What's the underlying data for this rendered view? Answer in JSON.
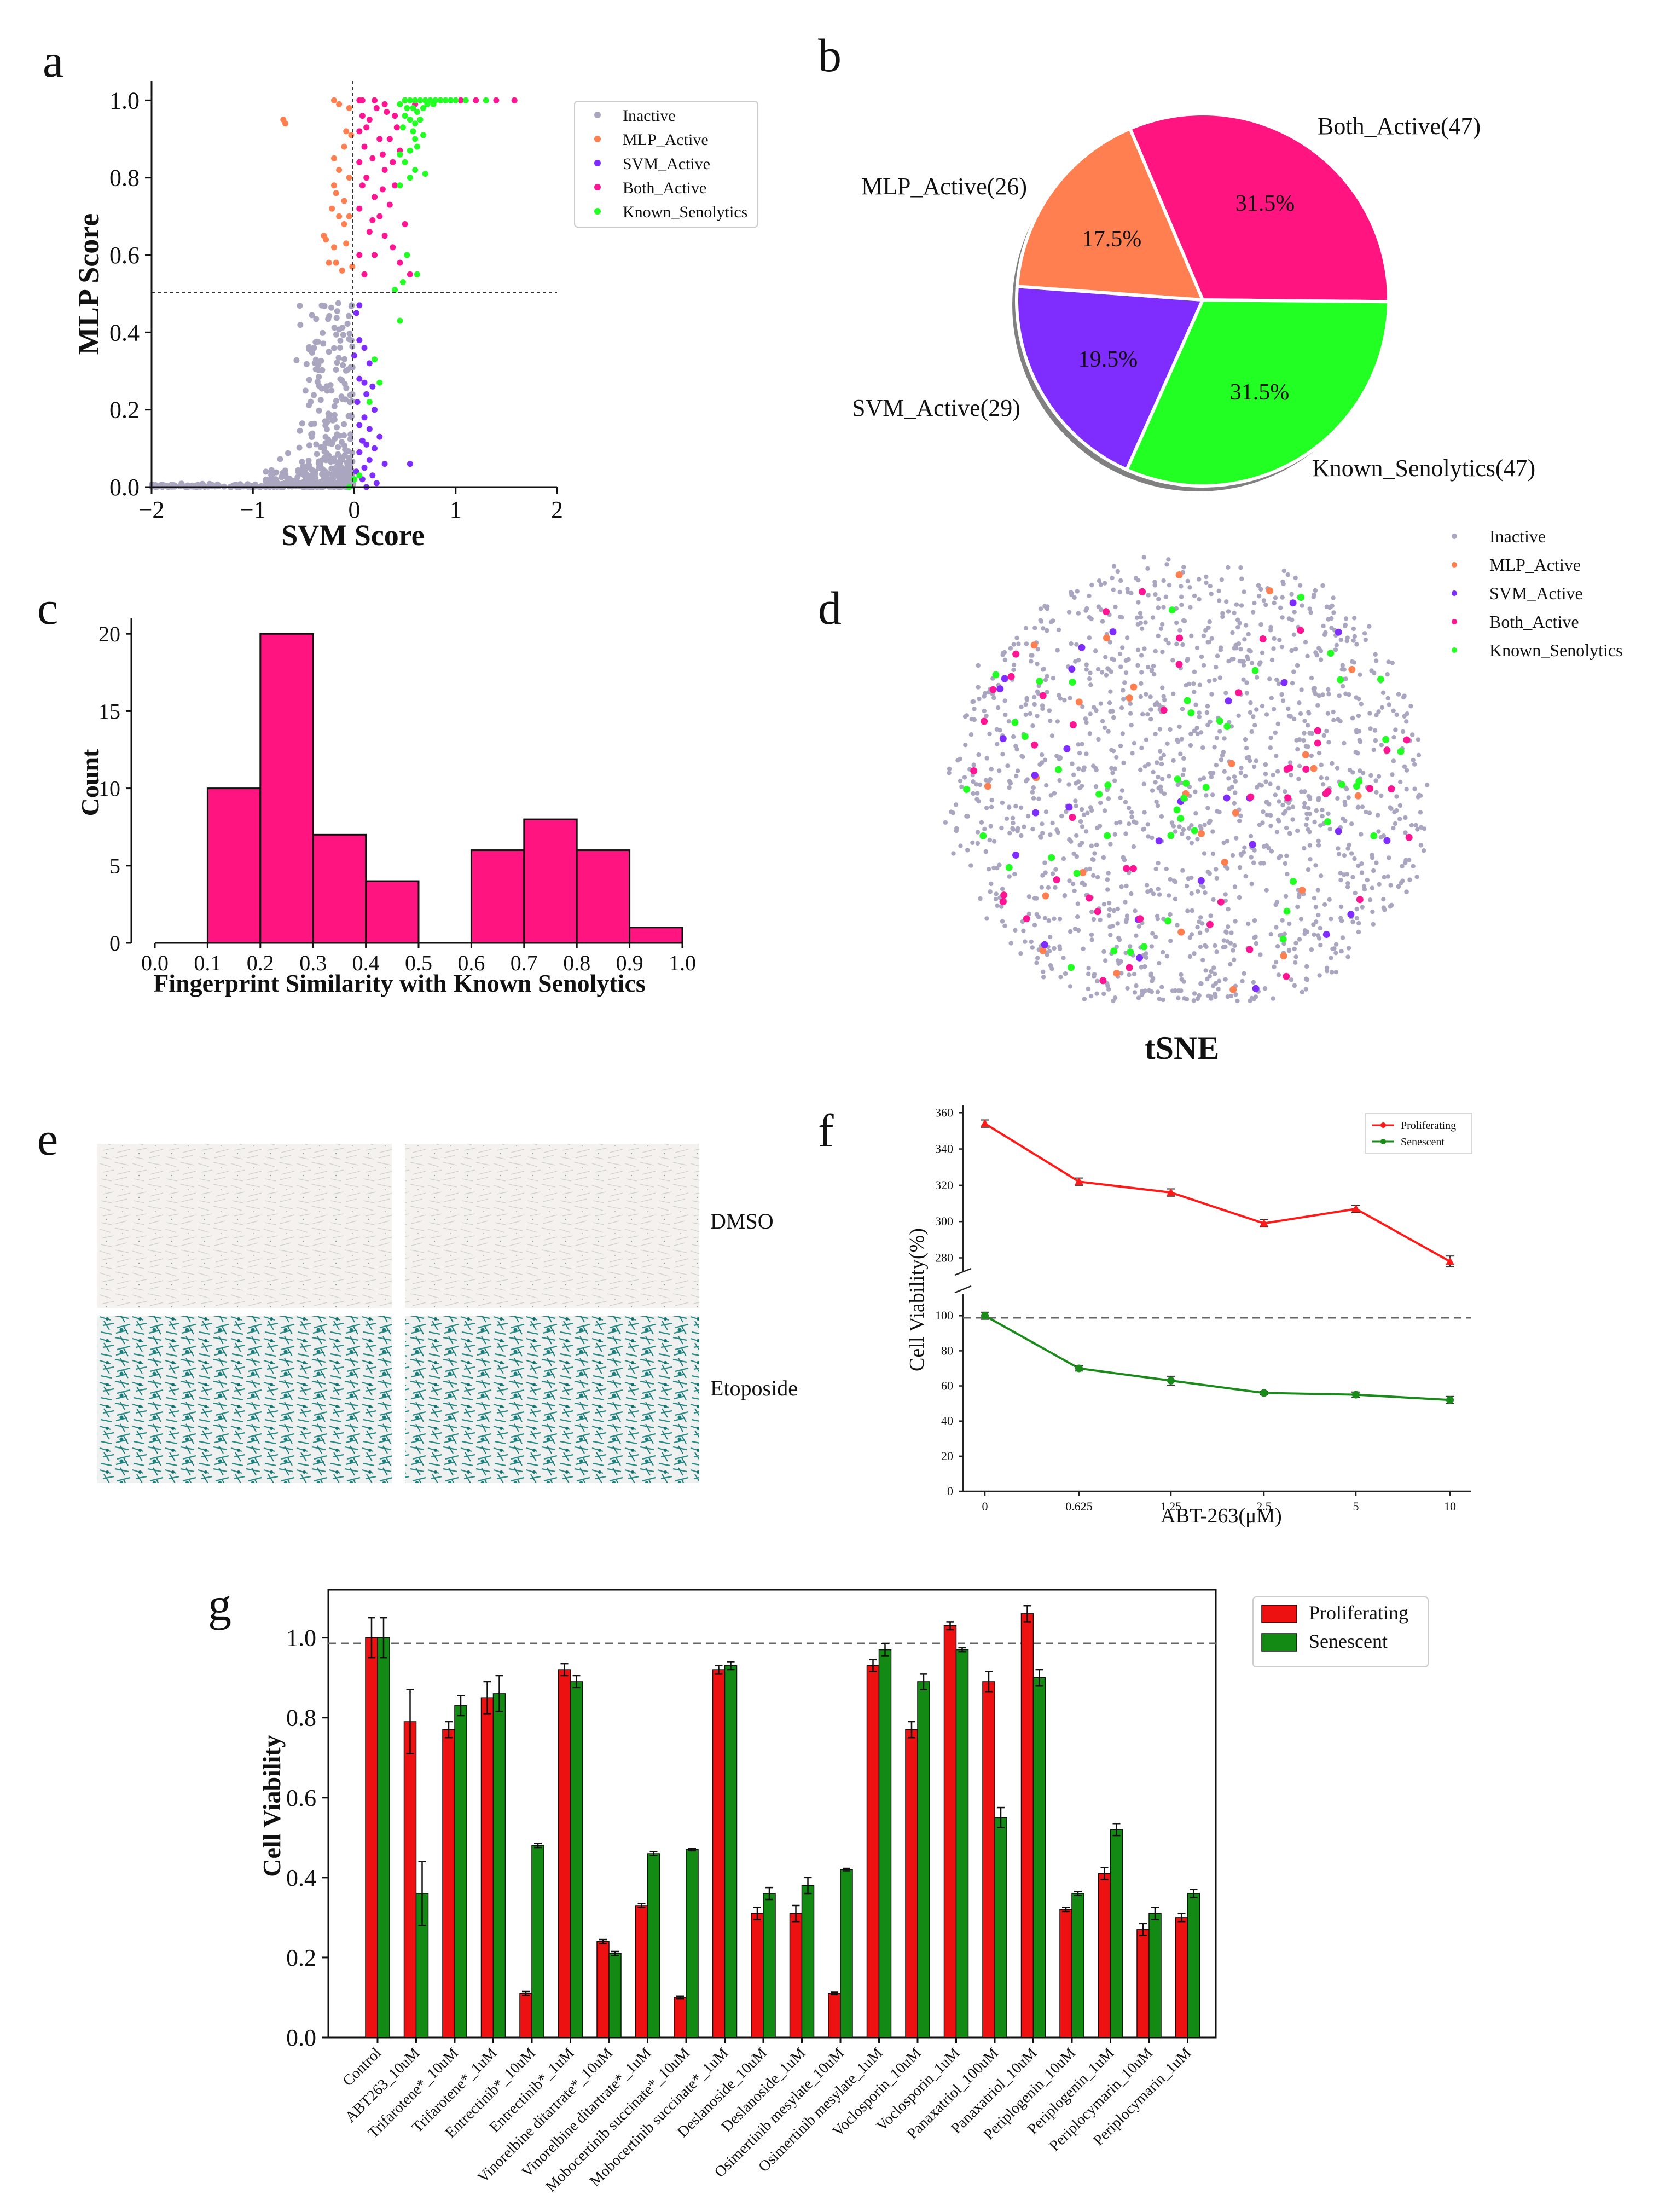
{
  "colors": {
    "inactive": "#aaa6c0",
    "mlp": "#ff7f50",
    "svm": "#7f2dff",
    "both": "#ff1493",
    "known": "#22ff22",
    "hist": "#ff1480",
    "prolif": "#ff1a1a",
    "senes": "#1a8a1a",
    "barProlif": "#ee1111",
    "barSenes": "#138a13"
  },
  "panels": {
    "a": "a",
    "b": "b",
    "c": "c",
    "d": "d",
    "e": "e",
    "f": "f",
    "g": "g"
  },
  "chart_data": [
    {
      "id": "a",
      "type": "scatter",
      "xlabel": "SVM Score",
      "ylabel": "MLP Score",
      "xlim": [
        -2,
        2
      ],
      "ylim": [
        0,
        1.05
      ],
      "xticks": [
        "−2",
        "−1",
        "0",
        "1",
        "2"
      ],
      "yticks": [
        "0.0",
        "0.2",
        "0.4",
        "0.6",
        "0.8",
        "1.0"
      ],
      "thresholds": {
        "x": 0,
        "y": 0.5
      },
      "legend": [
        "Inactive",
        "MLP_Active",
        "SVM_Active",
        "Both_Active",
        "Known_Senolytics"
      ],
      "legend_position": "right",
      "series": {
        "MLP_Active": [
          [
            -0.7,
            0.95
          ],
          [
            -0.68,
            0.94
          ],
          [
            -0.2,
            1.0
          ],
          [
            -0.15,
            0.99
          ],
          [
            -0.05,
            0.98
          ],
          [
            -0.08,
            0.92
          ],
          [
            -0.03,
            0.91
          ],
          [
            -0.1,
            0.88
          ],
          [
            -0.2,
            0.85
          ],
          [
            -0.15,
            0.82
          ],
          [
            -0.05,
            0.8
          ],
          [
            -0.2,
            0.78
          ],
          [
            -0.18,
            0.76
          ],
          [
            -0.1,
            0.74
          ],
          [
            -0.22,
            0.72
          ],
          [
            -0.15,
            0.7
          ],
          [
            -0.1,
            0.68
          ],
          [
            -0.05,
            0.7
          ],
          [
            -0.3,
            0.65
          ],
          [
            -0.28,
            0.64
          ],
          [
            -0.2,
            0.62
          ],
          [
            -0.08,
            0.63
          ],
          [
            -0.25,
            0.58
          ],
          [
            -0.18,
            0.58
          ],
          [
            -0.12,
            0.56
          ],
          [
            -0.02,
            0.57
          ]
        ],
        "SVM_Active": [
          [
            0.05,
            0.47
          ],
          [
            0.02,
            0.45
          ],
          [
            0.05,
            0.38
          ],
          [
            0.1,
            0.36
          ],
          [
            0.0,
            0.34
          ],
          [
            0.15,
            0.32
          ],
          [
            0.05,
            0.28
          ],
          [
            0.1,
            0.27
          ],
          [
            0.18,
            0.26
          ],
          [
            0.12,
            0.24
          ],
          [
            0.03,
            0.22
          ],
          [
            0.2,
            0.2
          ],
          [
            0.1,
            0.18
          ],
          [
            0.05,
            0.16
          ],
          [
            0.15,
            0.15
          ],
          [
            0.25,
            0.13
          ],
          [
            0.08,
            0.12
          ],
          [
            0.12,
            0.11
          ],
          [
            0.2,
            0.1
          ],
          [
            0.05,
            0.09
          ],
          [
            0.15,
            0.07
          ],
          [
            0.3,
            0.06
          ],
          [
            0.55,
            0.06
          ],
          [
            0.1,
            0.05
          ],
          [
            0.02,
            0.04
          ],
          [
            0.18,
            0.03
          ],
          [
            0.08,
            0.02
          ],
          [
            0.22,
            0.01
          ],
          [
            0.12,
            0.0
          ]
        ],
        "Both_Active": [
          [
            0.05,
            1.0
          ],
          [
            0.2,
            1.0
          ],
          [
            0.3,
            0.99
          ],
          [
            0.6,
            0.99
          ],
          [
            1.2,
            1.0
          ],
          [
            1.4,
            1.0
          ],
          [
            1.58,
            1.0
          ],
          [
            0.08,
            0.96
          ],
          [
            0.15,
            0.95
          ],
          [
            0.4,
            0.96
          ],
          [
            0.05,
            0.92
          ],
          [
            0.25,
            0.9
          ],
          [
            0.35,
            0.9
          ],
          [
            0.1,
            0.88
          ],
          [
            0.45,
            0.87
          ],
          [
            0.05,
            0.84
          ],
          [
            0.3,
            0.82
          ],
          [
            0.12,
            0.8
          ],
          [
            0.4,
            0.78
          ],
          [
            0.2,
            0.75
          ],
          [
            0.35,
            0.73
          ],
          [
            0.05,
            0.72
          ],
          [
            0.25,
            0.7
          ],
          [
            0.5,
            0.68
          ],
          [
            0.15,
            0.66
          ],
          [
            0.3,
            0.65
          ],
          [
            0.2,
            0.6
          ],
          [
            0.45,
            0.58
          ],
          [
            0.55,
            0.55
          ],
          [
            0.1,
            0.55
          ],
          [
            0.08,
            1.0
          ],
          [
            0.5,
            1.0
          ],
          [
            0.7,
            1.0
          ],
          [
            0.85,
            1.0
          ],
          [
            1.05,
            1.0
          ],
          [
            0.22,
            0.98
          ],
          [
            0.32,
            0.97
          ],
          [
            0.12,
            0.93
          ],
          [
            0.42,
            0.93
          ],
          [
            0.28,
            0.86
          ],
          [
            0.18,
            0.85
          ],
          [
            0.38,
            0.84
          ],
          [
            0.08,
            0.78
          ],
          [
            0.28,
            0.77
          ],
          [
            0.18,
            0.69
          ],
          [
            0.38,
            0.62
          ],
          [
            0.05,
            0.6
          ]
        ],
        "Known_Senolytics": [
          [
            0.5,
            1.0
          ],
          [
            0.55,
            1.0
          ],
          [
            0.6,
            1.0
          ],
          [
            0.65,
            1.0
          ],
          [
            0.7,
            1.0
          ],
          [
            0.75,
            1.0
          ],
          [
            0.8,
            1.0
          ],
          [
            0.85,
            1.0
          ],
          [
            0.9,
            1.0
          ],
          [
            0.95,
            1.0
          ],
          [
            1.0,
            1.0
          ],
          [
            1.1,
            1.0
          ],
          [
            1.3,
            1.0
          ],
          [
            0.45,
            0.99
          ],
          [
            0.52,
            0.98
          ],
          [
            0.58,
            0.98
          ],
          [
            0.62,
            0.97
          ],
          [
            0.68,
            0.98
          ],
          [
            0.72,
            0.99
          ],
          [
            0.78,
            0.99
          ],
          [
            0.5,
            0.96
          ],
          [
            0.55,
            0.95
          ],
          [
            0.6,
            0.94
          ],
          [
            0.65,
            0.95
          ],
          [
            0.48,
            0.93
          ],
          [
            0.58,
            0.92
          ],
          [
            0.6,
            0.9
          ],
          [
            0.68,
            0.91
          ],
          [
            0.62,
            0.88
          ],
          [
            0.45,
            0.86
          ],
          [
            0.55,
            0.87
          ],
          [
            0.5,
            0.84
          ],
          [
            0.6,
            0.82
          ],
          [
            0.7,
            0.81
          ],
          [
            0.55,
            0.8
          ],
          [
            0.45,
            0.78
          ],
          [
            0.52,
            0.6
          ],
          [
            0.62,
            0.55
          ],
          [
            0.48,
            0.53
          ],
          [
            0.4,
            0.51
          ],
          [
            0.45,
            0.43
          ],
          [
            0.2,
            0.33
          ],
          [
            0.25,
            0.27
          ],
          [
            0.15,
            0.22
          ],
          [
            0.05,
            0.03
          ],
          [
            0.0,
            0.02
          ],
          [
            -0.05,
            0.0
          ]
        ]
      }
    },
    {
      "id": "b",
      "type": "pie",
      "slices": [
        {
          "label": "Both_Active(47)",
          "pct_label": "31.5%",
          "value": 47,
          "color": "#ff1480"
        },
        {
          "label": "Known_Senolytics(47)",
          "pct_label": "31.5%",
          "value": 47,
          "color": "#22ff22"
        },
        {
          "label": "SVM_Active(29)",
          "pct_label": "19.5%",
          "value": 29,
          "color": "#7f2dff"
        },
        {
          "label": "MLP_Active(26)",
          "pct_label": "17.5%",
          "value": 26,
          "color": "#ff7f50"
        }
      ]
    },
    {
      "id": "c",
      "type": "bar",
      "title": "",
      "xlabel": "Fingerprint Similarity with Known Senolytics",
      "ylabel": "Count",
      "xlim": [
        0,
        1
      ],
      "ylim": [
        0,
        21
      ],
      "xticks": [
        "0.0",
        "0.1",
        "0.2",
        "0.3",
        "0.4",
        "0.5",
        "0.6",
        "0.7",
        "0.8",
        "0.9",
        "1.0"
      ],
      "yticks": [
        "0",
        "5",
        "10",
        "15",
        "20"
      ],
      "bins": [
        [
          0.1,
          0.2,
          10
        ],
        [
          0.2,
          0.3,
          20
        ],
        [
          0.3,
          0.4,
          7
        ],
        [
          0.4,
          0.5,
          4
        ],
        [
          0.6,
          0.7,
          6
        ],
        [
          0.7,
          0.8,
          8
        ],
        [
          0.8,
          0.9,
          6
        ],
        [
          0.9,
          1.0,
          1
        ]
      ]
    },
    {
      "id": "d",
      "type": "scatter",
      "xlabel": "tSNE",
      "legend": [
        "Inactive",
        "MLP_Active",
        "SVM_Active",
        "Both_Active",
        "Known_Senolytics"
      ],
      "legend_position": "top-right"
    },
    {
      "id": "f",
      "type": "line",
      "xlabel": "ABT-263(μM)",
      "ylabel": "Cell Viability(%)",
      "categories": [
        "0",
        "0.625",
        "1.25",
        "2.5",
        "5",
        "10"
      ],
      "upper_yticks": [
        "280",
        "300",
        "320",
        "340",
        "360"
      ],
      "lower_yticks": [
        "0",
        "20",
        "40",
        "60",
        "80",
        "100"
      ],
      "legend": [
        "Proliferating",
        "Senescent"
      ],
      "legend_position": "top-right",
      "reference_line": 100,
      "series": [
        {
          "name": "Proliferating",
          "values": [
            354,
            322,
            316,
            299,
            307,
            278
          ],
          "errors": [
            2,
            2,
            2,
            2,
            2,
            3
          ]
        },
        {
          "name": "Senescent",
          "values": [
            100,
            70,
            63,
            56,
            55,
            52
          ],
          "errors": [
            2,
            1.5,
            2.5,
            1,
            1.5,
            2
          ]
        }
      ]
    },
    {
      "id": "g",
      "type": "bar",
      "ylabel": "Cell Viability",
      "ylim": [
        0,
        1.12
      ],
      "yticks": [
        "0.0",
        "0.2",
        "0.4",
        "0.6",
        "0.8",
        "1.0"
      ],
      "reference_line": 1.0,
      "legend_position": "top-right",
      "categories": [
        "Control",
        "ABT263_10uM",
        "Trifarotene*_10uM",
        "Trifarotene*_1uM",
        "Entrectinib*_10uM",
        "Entrectinib*_1uM",
        "Vinorelbine ditartrate*_10uM",
        "Vinorelbine ditartrate*_1uM",
        "Mobocertinib succinate*_10uM",
        "Mobocertinib succinate*_1uM",
        "Deslanoside_10uM",
        "Deslanoside_1uM",
        "Osimertinib mesylate_10uM",
        "Osimertinib mesylate_1uM",
        "Voclosporin_10uM",
        "Voclosporin_1uM",
        "Panaxatriol_100uM",
        "Panaxatriol_10uM",
        "Periplogenin_10uM",
        "Periplogenin_1uM",
        "Periplocymarin_10uM",
        "Periplocymarin_1uM"
      ],
      "series": [
        {
          "name": "Proliferating",
          "values": [
            1.0,
            0.79,
            0.77,
            0.85,
            0.11,
            0.92,
            0.24,
            0.33,
            0.1,
            0.92,
            0.31,
            0.31,
            0.11,
            0.93,
            0.77,
            1.03,
            0.89,
            1.06,
            0.32,
            0.41,
            0.27,
            0.3
          ],
          "errors": [
            0.05,
            0.08,
            0.02,
            0.04,
            0.005,
            0.015,
            0.005,
            0.005,
            0.003,
            0.01,
            0.015,
            0.02,
            0.003,
            0.015,
            0.02,
            0.01,
            0.025,
            0.02,
            0.005,
            0.015,
            0.015,
            0.01
          ]
        },
        {
          "name": "Senescent",
          "values": [
            1.0,
            0.36,
            0.83,
            0.86,
            0.48,
            0.89,
            0.21,
            0.46,
            0.47,
            0.93,
            0.36,
            0.38,
            0.42,
            0.97,
            0.89,
            0.97,
            0.55,
            0.9,
            0.36,
            0.52,
            0.31,
            0.36
          ],
          "errors": [
            0.05,
            0.08,
            0.025,
            0.045,
            0.005,
            0.015,
            0.005,
            0.005,
            0.003,
            0.01,
            0.015,
            0.02,
            0.003,
            0.015,
            0.02,
            0.005,
            0.025,
            0.02,
            0.005,
            0.015,
            0.015,
            0.01
          ]
        }
      ]
    }
  ],
  "panel_e": {
    "labels": [
      "DMSO",
      "Etoposide"
    ]
  }
}
